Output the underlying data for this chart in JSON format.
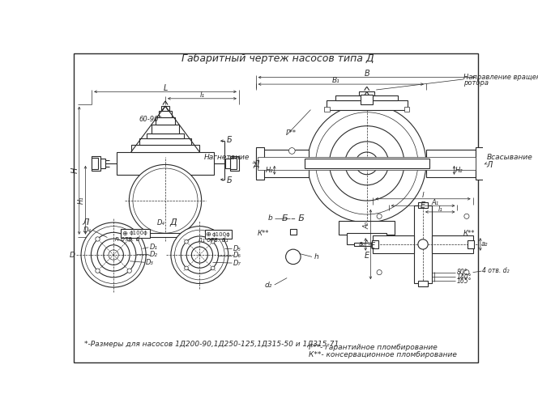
{
  "title": "Габаритный чертеж насосов типа Д",
  "background_color": "#ffffff",
  "line_color": "#2a2a2a",
  "text_color": "#2a2a2a",
  "title_fontsize": 9,
  "ann_fs": 6.5,
  "note_text": "*-Размеры для насосов 1Д200-90,1Д250-125,1Д315-50 и 1Д315-71",
  "legend1": "Г**- гарантийное пломбирование",
  "legend2": "К**- консервационное пломбирование"
}
